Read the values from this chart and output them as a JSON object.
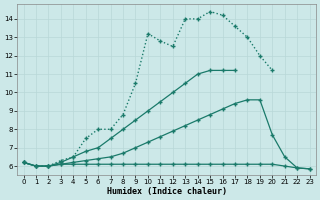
{
  "xlabel": "Humidex (Indice chaleur)",
  "bg_color": "#cce8e8",
  "line_color": "#1a7a6a",
  "grid_color": "#b8d8d8",
  "xlim": [
    -0.5,
    23.5
  ],
  "ylim": [
    5.5,
    14.8
  ],
  "xticks": [
    0,
    1,
    2,
    3,
    4,
    5,
    6,
    7,
    8,
    9,
    10,
    11,
    12,
    13,
    14,
    15,
    16,
    17,
    18,
    19,
    20,
    21,
    22,
    23
  ],
  "yticks": [
    6,
    7,
    8,
    9,
    10,
    11,
    12,
    13,
    14
  ],
  "series": [
    {
      "x": [
        0,
        1,
        2,
        3,
        4,
        5,
        6,
        7,
        8,
        9,
        10,
        11,
        12,
        13,
        14,
        15,
        16,
        17,
        18,
        19,
        20,
        21,
        22,
        23
      ],
      "y": [
        6.2,
        6.0,
        6.0,
        6.1,
        6.1,
        6.1,
        6.1,
        6.1,
        6.1,
        6.1,
        6.1,
        6.1,
        6.1,
        6.1,
        6.1,
        6.1,
        6.1,
        6.1,
        6.1,
        6.1,
        6.1,
        6.0,
        5.9,
        5.85
      ]
    },
    {
      "x": [
        0,
        1,
        2,
        3,
        4,
        5,
        6,
        7,
        8,
        9,
        10,
        11,
        12,
        13,
        14,
        15,
        16,
        17,
        18,
        19,
        20,
        21,
        22,
        23
      ],
      "y": [
        6.2,
        6.0,
        6.0,
        6.1,
        6.2,
        6.3,
        6.4,
        6.5,
        6.7,
        7.0,
        7.3,
        7.6,
        7.9,
        8.2,
        8.5,
        8.8,
        9.1,
        9.4,
        9.6,
        9.6,
        7.7,
        6.5,
        5.9,
        5.85
      ]
    },
    {
      "x": [
        0,
        1,
        2,
        3,
        4,
        5,
        6,
        7,
        8,
        9,
        10,
        11,
        12,
        13,
        14,
        15,
        16,
        17,
        18,
        19,
        20,
        21,
        22,
        23
      ],
      "y": [
        6.2,
        6.0,
        6.0,
        6.2,
        6.5,
        6.8,
        7.0,
        7.5,
        8.0,
        8.5,
        9.0,
        9.5,
        10.0,
        10.5,
        11.0,
        11.2,
        11.2,
        11.2,
        null,
        null,
        null,
        null,
        null,
        null
      ]
    },
    {
      "x": [
        0,
        1,
        2,
        3,
        4,
        5,
        6,
        7,
        8,
        9,
        10,
        11,
        12,
        13,
        14,
        15,
        16,
        17,
        18,
        19,
        20
      ],
      "y": [
        6.2,
        6.0,
        6.0,
        6.3,
        6.5,
        7.5,
        8.0,
        8.0,
        8.8,
        10.5,
        13.2,
        12.8,
        12.5,
        14.0,
        14.0,
        14.4,
        14.2,
        13.6,
        13.0,
        12.0,
        11.2
      ]
    }
  ]
}
